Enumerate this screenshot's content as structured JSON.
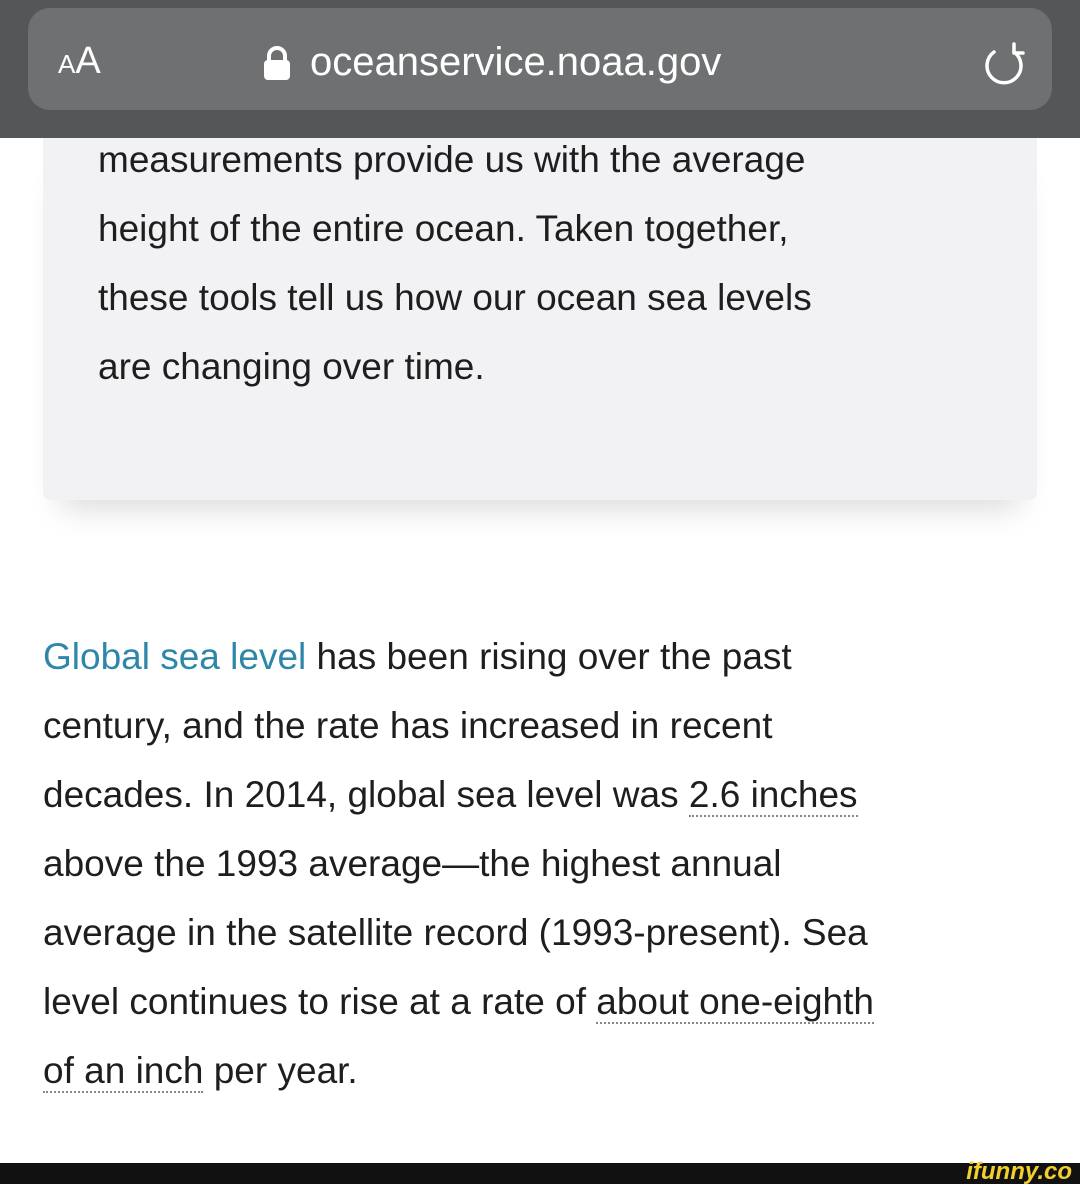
{
  "browser_bar": {
    "text_size_button": "AA",
    "url": "oceanservice.noaa.gov"
  },
  "article": {
    "card_lines": [
      "measurements provide us with the average",
      "height of the entire ocean. Taken together,",
      "these tools tell us how our ocean sea levels",
      "are changing over time."
    ],
    "paragraph_lines": [
      [
        {
          "link": "Global sea level"
        },
        {
          "text": " has been rising over the past"
        }
      ],
      [
        {
          "text": "century, and the rate has increased in recent"
        }
      ],
      [
        {
          "text": "decades. In 2014, global sea level was "
        },
        {
          "term": "2.6 inches"
        }
      ],
      [
        {
          "text": "above the 1993 average—the highest annual"
        }
      ],
      [
        {
          "text": "average in the satellite record (1993-present). Sea"
        }
      ],
      [
        {
          "text": "level continues to rise at a rate of "
        },
        {
          "term": "about one-eighth"
        }
      ],
      [
        {
          "term": "of an inch"
        },
        {
          "text": " per year."
        }
      ]
    ]
  },
  "watermark": "ifunny.co"
}
